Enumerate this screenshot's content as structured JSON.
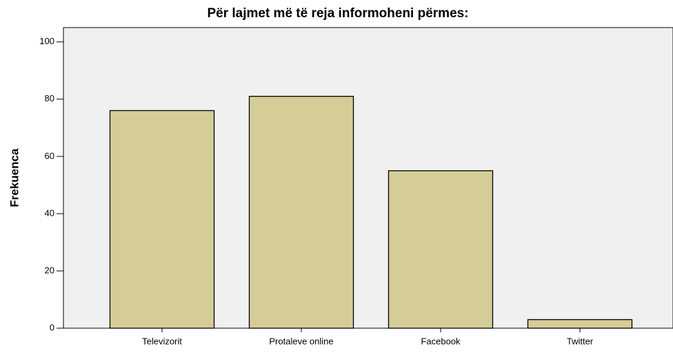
{
  "chart_data": {
    "type": "bar",
    "title": "Për lajmet më të reja informoheni përmes:",
    "y_label": "Frekuenca",
    "categories": [
      "Televizorit",
      "Protaleve online",
      "Facebook",
      "Twitter"
    ],
    "values": [
      76,
      81,
      55,
      3
    ],
    "color": "#d4cd97",
    "ylim": [
      0,
      105
    ],
    "yticks": [
      0,
      20,
      40,
      60,
      80,
      100
    ],
    "grid": false
  }
}
